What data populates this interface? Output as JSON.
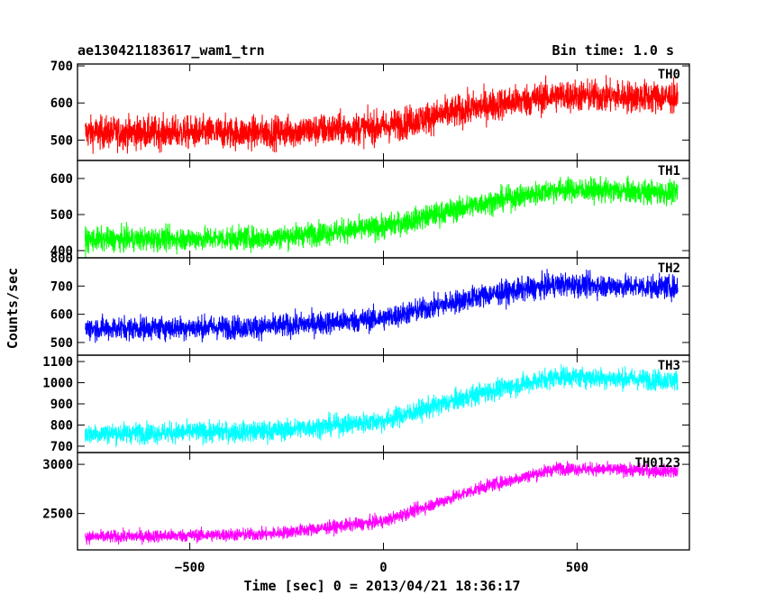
{
  "header": {
    "title": "ae130421183617_wam1_trn",
    "bin_time": "Bin time: 1.0 s"
  },
  "chart_data": {
    "type": "line",
    "title": "ae130421183617_wam1_trn",
    "subtitle": "Bin time: 1.0 s",
    "xlabel": "Time [sec] 0 = 2013/04/21 18:36:17",
    "ylabel": "Counts/sec",
    "xlim": [
      -790,
      790
    ],
    "x_ticks": [
      -500,
      0,
      500
    ],
    "x_tick_labels": [
      "−500",
      "0",
      "500"
    ],
    "x_range_data": [
      -770,
      760
    ],
    "grid": false,
    "series": [
      {
        "name": "TH0",
        "color": "#ff0000",
        "ylim": [
          445,
          705
        ],
        "ticks": [
          500,
          600,
          700
        ],
        "trend_x": [
          -770,
          -300,
          0,
          250,
          450,
          760
        ],
        "trend_y": [
          520,
          520,
          535,
          590,
          620,
          615
        ],
        "noise_amplitude": 40
      },
      {
        "name": "TH1",
        "color": "#00ff00",
        "ylim": [
          380,
          650
        ],
        "ticks": [
          400,
          500,
          600
        ],
        "trend_x": [
          -770,
          -300,
          0,
          250,
          450,
          760
        ],
        "trend_y": [
          430,
          435,
          465,
          530,
          570,
          560
        ],
        "noise_amplitude": 30
      },
      {
        "name": "TH2",
        "color": "#0000ff",
        "ylim": [
          455,
          800
        ],
        "ticks": [
          500,
          600,
          700,
          800
        ],
        "trend_x": [
          -770,
          -300,
          0,
          250,
          450,
          760
        ],
        "trend_y": [
          550,
          555,
          585,
          665,
          705,
          695
        ],
        "noise_amplitude": 38
      },
      {
        "name": "TH3",
        "color": "#00ffff",
        "ylim": [
          670,
          1130
        ],
        "ticks": [
          700,
          800,
          900,
          1000,
          1100
        ],
        "trend_x": [
          -770,
          -300,
          0,
          250,
          450,
          760
        ],
        "trend_y": [
          760,
          770,
          820,
          950,
          1030,
          1010
        ],
        "noise_amplitude": 45
      },
      {
        "name": "TH0123",
        "color": "#ff00ff",
        "ylim": [
          2130,
          3120
        ],
        "ticks": [
          2500,
          3000
        ],
        "trend_x": [
          -770,
          -300,
          0,
          250,
          450,
          760
        ],
        "trend_y": [
          2260,
          2290,
          2420,
          2760,
          2960,
          2930
        ],
        "noise_amplitude": 60
      }
    ]
  }
}
